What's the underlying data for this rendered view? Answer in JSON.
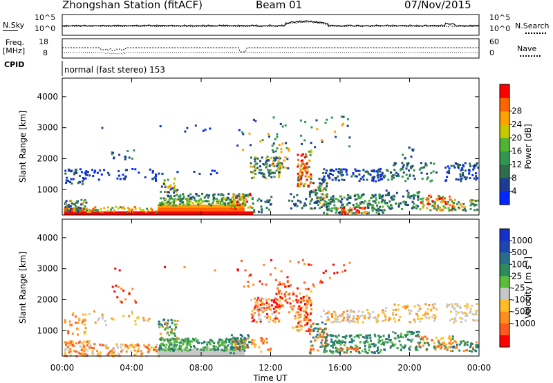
{
  "header": {
    "station": "Zhongshan Station (fitACF)",
    "beam": "Beam 01",
    "date": "07/Nov/2015"
  },
  "strip_labels": {
    "nsky": "N.Sky",
    "nsearch": "N.Search",
    "freq": "Freq.",
    "freq_unit": "[MHz]",
    "nave": "Nave",
    "cpid": "CPID",
    "cpid_text": "normal (fast stereo) 153",
    "noise_left_top": "10^5",
    "noise_left_bottom": "10^0",
    "noise_right_top": "10^5",
    "noise_right_bottom": "10^0",
    "freq_left_top": "18",
    "freq_left_bottom": "8",
    "nave_right_top": "60",
    "nave_right_bottom": "0"
  },
  "colors": {
    "power": [
      "#0028ff",
      "#1e3c96",
      "#2d6e4b",
      "#329650",
      "#50b432",
      "#c8c800",
      "#ffa000",
      "#ff6400",
      "#ff0000"
    ],
    "velocity": [
      "#ff0000",
      "#ff5a1e",
      "#ff8c1e",
      "#ffbe28",
      "#c8c8c8",
      "#5abe3c",
      "#2d8c5a",
      "#286e8c",
      "#1e46b4",
      "#1432c8"
    ]
  },
  "chart_data": [
    {
      "type": "heatmap",
      "ylabel": "Slant Range [km]",
      "yticks": [
        1000,
        2000,
        3000,
        4000
      ],
      "ylim": [
        180,
        4600
      ],
      "xlim": [
        0,
        24
      ],
      "colorbar_label": "Power [dB]",
      "colorbar_ticks": [
        "4",
        "8",
        "12",
        "16",
        "20",
        "24",
        "28"
      ]
    },
    {
      "type": "heatmap",
      "xlabel": "Time UT",
      "ylabel": "Slant Range [km]",
      "xticks": [
        "00:00",
        "04:00",
        "08:00",
        "12:00",
        "16:00",
        "20:00",
        "00:00"
      ],
      "yticks": [
        1000,
        2000,
        3000,
        4000
      ],
      "ylim": [
        180,
        4600
      ],
      "xlim": [
        0,
        24
      ],
      "colorbar_label": "Velocity [m s",
      "colorbar_sup": "-1",
      "colorbar_close": "]",
      "colorbar_ticks": [
        "1000",
        "500",
        "100",
        "25",
        "-25",
        "-100",
        "-500",
        "-1000"
      ]
    }
  ]
}
